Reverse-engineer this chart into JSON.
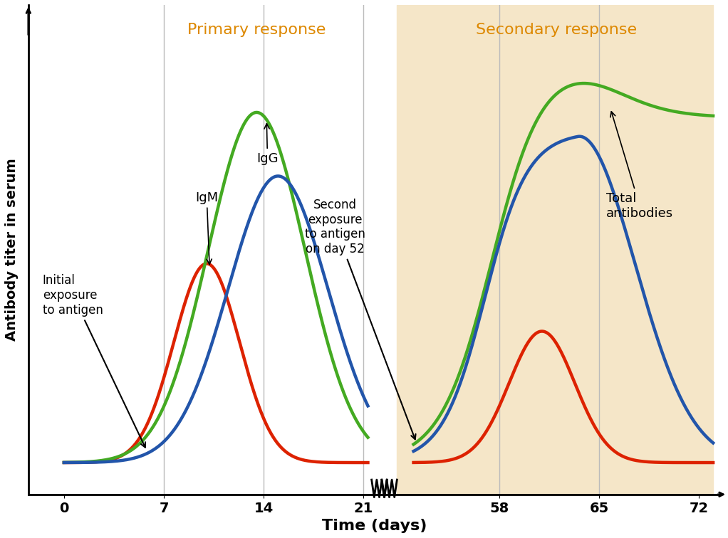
{
  "title_primary": "Primary response",
  "title_secondary": "Secondary response",
  "xlabel": "Time (days)",
  "ylabel": "Antibody titer in serum",
  "background_color": "#FFFFFF",
  "shading_color": "#F5E6C8",
  "grid_color": "#BBBBBB",
  "IgM_color": "#DD2200",
  "IgG_blue_color": "#2255AA",
  "IgG_green_color": "#44AA22",
  "line_width": 3.2,
  "annotation_initial": "Initial\nexposure\nto antigen",
  "annotation_second": "Second\nexposure\nto antigen\non day 52",
  "label_IgM": "IgM",
  "label_IgG": "IgG",
  "label_total": "Total\nantibodies",
  "title_color": "#DD8800",
  "title_fontsize": 16,
  "label_fontsize": 13,
  "annot_fontsize": 12,
  "tick_fontsize": 14
}
